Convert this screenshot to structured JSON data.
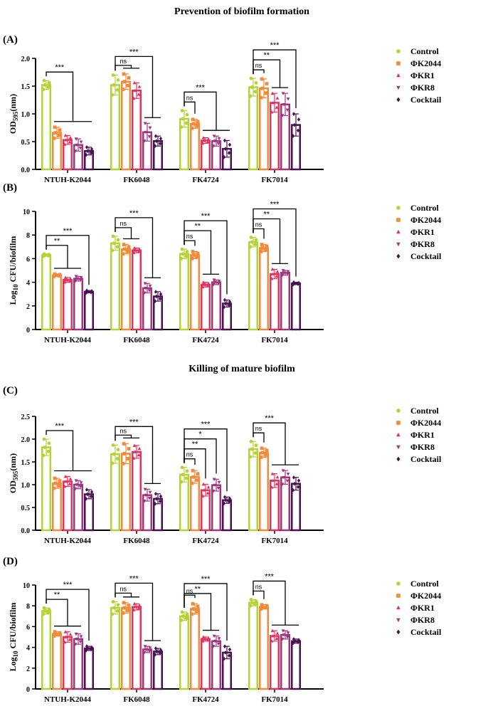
{
  "titles": [
    "Prevention of biofilm formation",
    "Killing of mature biofilm"
  ],
  "series_colors": {
    "Control": "#b5d334",
    "ΦK2044": "#f28a3a",
    "ΦKR1": "#e2325f",
    "ΦKR8": "#a0357f",
    "Cocktail": "#4a0f52"
  },
  "series_markers": {
    "Control": "circle",
    "ΦK2044": "square",
    "ΦKR1": "triangle-up",
    "ΦKR8": "triangle-down",
    "Cocktail": "diamond"
  },
  "chart_data": [
    {
      "panel": "(A)",
      "type": "bar",
      "ylabel": {
        "main": "OD",
        "sub": "595",
        "rest": "(nm)"
      },
      "ylim": [
        0,
        2.0
      ],
      "yticks": [
        "0.0",
        "0.5",
        "1.0",
        "1.5",
        "2.0"
      ],
      "ytick_values": [
        0,
        0.5,
        1,
        1.5,
        2
      ],
      "categories": [
        "NTUH-K2044",
        "FK6048",
        "FK4724",
        "FK7014"
      ],
      "legend_position": "right",
      "series": [
        {
          "name": "Control",
          "values": [
            1.52,
            1.52,
            0.91,
            1.48
          ],
          "sd": [
            0.08,
            0.18,
            0.15,
            0.16
          ]
        },
        {
          "name": "ΦK2044",
          "values": [
            0.66,
            1.58,
            0.82,
            1.46
          ],
          "sd": [
            0.1,
            0.14,
            0.08,
            0.17
          ]
        },
        {
          "name": "ΦKR1",
          "values": [
            0.53,
            1.42,
            0.52,
            1.2
          ],
          "sd": [
            0.08,
            0.14,
            0.05,
            0.17
          ]
        },
        {
          "name": "ΦKR8",
          "values": [
            0.44,
            0.67,
            0.51,
            1.17
          ],
          "sd": [
            0.11,
            0.16,
            0.09,
            0.2
          ]
        },
        {
          "name": "Cocktail",
          "values": [
            0.33,
            0.51,
            0.37,
            0.8
          ],
          "sd": [
            0.07,
            0.09,
            0.15,
            0.2
          ]
        }
      ],
      "annotations": [
        {
          "group": 0,
          "from": 0,
          "to": [
            1,
            4
          ],
          "label": "***"
        },
        {
          "group": 1,
          "from": 0,
          "to": [
            1,
            2
          ],
          "label": "ns"
        },
        {
          "group": 1,
          "from": 0,
          "to": [
            3,
            4
          ],
          "label": "***"
        },
        {
          "group": 2,
          "from": 0,
          "to": [
            1,
            1
          ],
          "label": "ns"
        },
        {
          "group": 2,
          "from": 0,
          "to": [
            2,
            4
          ],
          "label": "***"
        },
        {
          "group": 3,
          "from": 0,
          "to": [
            1,
            1
          ],
          "label": "ns"
        },
        {
          "group": 3,
          "from": 0,
          "to": [
            2,
            3
          ],
          "label": "**"
        },
        {
          "group": 3,
          "from": 0,
          "to": [
            4,
            4
          ],
          "label": "***"
        }
      ]
    },
    {
      "panel": "(B)",
      "type": "bar",
      "ylabel": {
        "main": "Log",
        "sub": "10",
        "rest": " CFU/biofilm"
      },
      "ylim": [
        0,
        10
      ],
      "yticks": [
        "0",
        "2",
        "4",
        "6",
        "8",
        "10"
      ],
      "ytick_values": [
        0,
        2,
        4,
        6,
        8,
        10
      ],
      "categories": [
        "NTUH-K2044",
        "FK6048",
        "FK4724",
        "FK7014"
      ],
      "legend_position": "right",
      "series": [
        {
          "name": "Control",
          "values": [
            6.3,
            7.3,
            6.4,
            7.4
          ],
          "sd": [
            0.1,
            0.6,
            0.4,
            0.4
          ]
        },
        {
          "name": "ΦK2044",
          "values": [
            4.6,
            6.8,
            6.3,
            6.9
          ],
          "sd": [
            0.1,
            0.4,
            0.3,
            0.3
          ]
        },
        {
          "name": "ΦKR1",
          "values": [
            4.2,
            6.7,
            3.8,
            4.7
          ],
          "sd": [
            0.2,
            0.2,
            0.2,
            0.4
          ]
        },
        {
          "name": "ΦKR8",
          "values": [
            4.3,
            3.5,
            4.0,
            4.8
          ],
          "sd": [
            0.2,
            0.4,
            0.2,
            0.2
          ]
        },
        {
          "name": "Cocktail",
          "values": [
            3.2,
            2.8,
            2.2,
            3.9
          ],
          "sd": [
            0.1,
            0.4,
            0.3,
            0.1
          ]
        }
      ],
      "annotations": [
        {
          "group": 0,
          "from": 0,
          "to": [
            1,
            3
          ],
          "label": "**"
        },
        {
          "group": 0,
          "from": 0,
          "to": [
            4,
            4
          ],
          "label": "***"
        },
        {
          "group": 1,
          "from": 0,
          "to": [
            1,
            2
          ],
          "label": "ns"
        },
        {
          "group": 1,
          "from": 0,
          "to": [
            3,
            4
          ],
          "label": "***"
        },
        {
          "group": 2,
          "from": 0,
          "to": [
            1,
            1
          ],
          "label": "ns"
        },
        {
          "group": 2,
          "from": 0,
          "to": [
            2,
            3
          ],
          "label": "**"
        },
        {
          "group": 2,
          "from": 0,
          "to": [
            4,
            4
          ],
          "label": "***"
        },
        {
          "group": 3,
          "from": 0,
          "to": [
            1,
            1
          ],
          "label": "ns"
        },
        {
          "group": 3,
          "from": 0,
          "to": [
            2,
            3
          ],
          "label": "**"
        },
        {
          "group": 3,
          "from": 0,
          "to": [
            4,
            4
          ],
          "label": "***"
        }
      ]
    },
    {
      "panel": "(C)",
      "type": "bar",
      "ylabel": {
        "main": "OD",
        "sub": "595",
        "rest": "(nm)"
      },
      "ylim": [
        0,
        2.5
      ],
      "yticks": [
        "0.0",
        "0.5",
        "1.0",
        "1.5",
        "2.0",
        "2.5"
      ],
      "ytick_values": [
        0,
        0.5,
        1,
        1.5,
        2,
        2.5
      ],
      "categories": [
        "NTUH-K2044",
        "FK6048",
        "FK4724",
        "FK7014"
      ],
      "legend_position": "right",
      "series": [
        {
          "name": "Control",
          "values": [
            1.82,
            1.67,
            1.22,
            1.78
          ],
          "sd": [
            0.18,
            0.2,
            0.16,
            0.17
          ]
        },
        {
          "name": "ΦK2044",
          "values": [
            1.03,
            1.68,
            1.17,
            1.7
          ],
          "sd": [
            0.11,
            0.22,
            0.14,
            0.1
          ]
        },
        {
          "name": "ΦKR1",
          "values": [
            1.07,
            1.72,
            0.88,
            1.09
          ],
          "sd": [
            0.11,
            0.14,
            0.13,
            0.15
          ]
        },
        {
          "name": "ΦKR8",
          "values": [
            1.0,
            0.77,
            0.99,
            1.16
          ],
          "sd": [
            0.09,
            0.13,
            0.13,
            0.15
          ]
        },
        {
          "name": "Cocktail",
          "values": [
            0.79,
            0.69,
            0.66,
            1.02
          ],
          "sd": [
            0.1,
            0.11,
            0.07,
            0.14
          ]
        }
      ],
      "annotations": [
        {
          "group": 0,
          "from": 0,
          "to": [
            1,
            4
          ],
          "label": "***"
        },
        {
          "group": 1,
          "from": 0,
          "to": [
            1,
            2
          ],
          "label": "ns"
        },
        {
          "group": 1,
          "from": 0,
          "to": [
            3,
            4
          ],
          "label": "***"
        },
        {
          "group": 2,
          "from": 0,
          "to": [
            1,
            1
          ],
          "label": "ns"
        },
        {
          "group": 2,
          "from": 0,
          "to": [
            2,
            2
          ],
          "label": "**"
        },
        {
          "group": 2,
          "from": 0,
          "to": [
            3,
            3
          ],
          "label": "*"
        },
        {
          "group": 2,
          "from": 0,
          "to": [
            4,
            4
          ],
          "label": "***"
        },
        {
          "group": 3,
          "from": 0,
          "to": [
            1,
            1
          ],
          "label": "ns"
        },
        {
          "group": 3,
          "from": 0,
          "to": [
            2,
            4
          ],
          "label": "***"
        }
      ]
    },
    {
      "panel": "(D)",
      "type": "bar",
      "ylabel": {
        "main": "Log",
        "sub": "10",
        "rest": " CFU/biofilm"
      },
      "ylim": [
        0,
        10
      ],
      "yticks": [
        "0",
        "2",
        "4",
        "6",
        "8",
        "10"
      ],
      "ytick_values": [
        0,
        2,
        4,
        6,
        8,
        10
      ],
      "categories": [
        "NTUH-K2044",
        "FK6048",
        "FK4724",
        "FK7014"
      ],
      "legend_position": "right",
      "series": [
        {
          "name": "Control",
          "values": [
            7.5,
            7.8,
            7.0,
            8.3
          ],
          "sd": [
            0.3,
            0.6,
            0.4,
            0.3
          ]
        },
        {
          "name": "ΦK2044",
          "values": [
            5.3,
            7.8,
            7.7,
            7.9
          ],
          "sd": [
            0.2,
            0.5,
            0.5,
            0.2
          ]
        },
        {
          "name": "ΦKR1",
          "values": [
            5.0,
            7.9,
            4.8,
            5.1
          ],
          "sd": [
            0.5,
            0.3,
            0.2,
            0.5
          ]
        },
        {
          "name": "ΦKR8",
          "values": [
            4.8,
            3.8,
            4.6,
            5.2
          ],
          "sd": [
            0.5,
            0.3,
            0.5,
            0.4
          ]
        },
        {
          "name": "Cocktail",
          "values": [
            3.9,
            3.6,
            3.5,
            4.6
          ],
          "sd": [
            0.2,
            0.3,
            0.6,
            0.2
          ]
        }
      ],
      "annotations": [
        {
          "group": 0,
          "from": 0,
          "to": [
            1,
            3
          ],
          "label": "**"
        },
        {
          "group": 0,
          "from": 0,
          "to": [
            4,
            4
          ],
          "label": "***"
        },
        {
          "group": 1,
          "from": 0,
          "to": [
            1,
            2
          ],
          "label": "ns"
        },
        {
          "group": 1,
          "from": 0,
          "to": [
            3,
            4
          ],
          "label": "***"
        },
        {
          "group": 2,
          "from": 0,
          "to": [
            1,
            1
          ],
          "label": "ns"
        },
        {
          "group": 2,
          "from": 0,
          "to": [
            2,
            3
          ],
          "label": "**"
        },
        {
          "group": 2,
          "from": 0,
          "to": [
            4,
            4
          ],
          "label": "***"
        },
        {
          "group": 3,
          "from": 0,
          "to": [
            1,
            1
          ],
          "label": "ns"
        },
        {
          "group": 3,
          "from": 0,
          "to": [
            2,
            4
          ],
          "label": "***"
        }
      ]
    }
  ]
}
